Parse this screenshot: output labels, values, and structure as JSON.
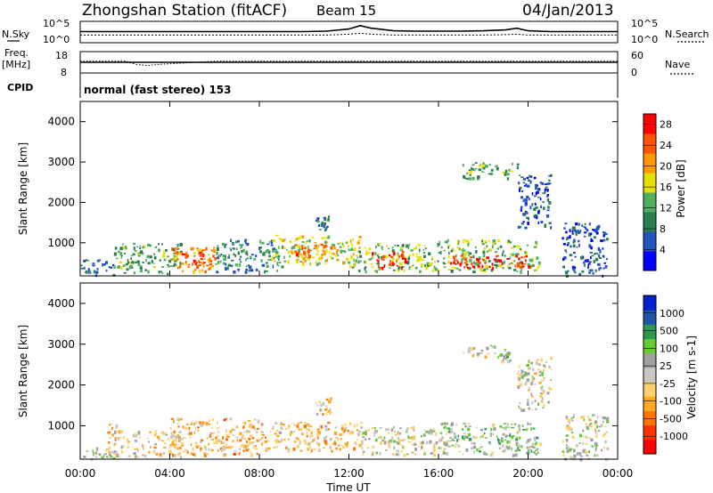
{
  "header": {
    "station": "Zhongshan Station (fitACF)",
    "beam": "Beam 15",
    "date": "04/Jan/2013"
  },
  "sky_panel": {
    "left_label": "N.Sky",
    "left_ticks": [
      "10^5",
      "10^0"
    ],
    "right_label": "N.Search",
    "right_ticks": [
      "10^5",
      "10^0"
    ]
  },
  "freq_panel": {
    "left_label": "Freq.",
    "left_unit": "[MHz]",
    "left_ticks": [
      "18",
      "8"
    ],
    "right_label": "Nave",
    "right_ticks": [
      "60",
      "0"
    ]
  },
  "cpid": {
    "label": "CPID",
    "value": "normal (fast stereo) 153"
  },
  "x_axis": {
    "title": "Time UT",
    "ticks": [
      "00:00",
      "04:00",
      "08:00",
      "12:00",
      "16:00",
      "20:00",
      "00:00"
    ]
  },
  "colors": {
    "power_scale": [
      "#0000ff",
      "#2255bb",
      "#2a7f4f",
      "#4fb060",
      "#e8e000",
      "#ff9900",
      "#ff5500",
      "#ff0000"
    ],
    "velocity_scale": [
      "#ff0000",
      "#ff3300",
      "#ff7700",
      "#ffaa22",
      "#ffd070",
      "#c8c8c0",
      "#a0a0a0",
      "#66cc33",
      "#2a9a50",
      "#2255aa",
      "#0022cc"
    ]
  },
  "chart_data": [
    {
      "type": "line",
      "panel": "N.Sky / N.Search",
      "x_unit": "hours UT",
      "x": [
        0,
        1,
        2,
        3,
        4,
        5,
        6,
        7,
        8,
        9,
        10,
        11,
        12,
        12.5,
        13,
        14,
        15,
        16,
        17,
        18,
        19,
        19.5,
        20,
        21,
        22,
        23,
        24
      ],
      "series": [
        {
          "values": [
            2.6,
            2.6,
            2.6,
            2.6,
            2.6,
            2.6,
            2.6,
            2.6,
            2.6,
            2.6,
            2.6,
            2.7,
            3.2,
            4.0,
            3.4,
            2.8,
            2.7,
            2.7,
            2.7,
            2.8,
            3.0,
            3.4,
            2.8,
            2.6,
            2.6,
            2.6,
            2.6
          ]
        },
        {
          "values": [
            1.8,
            1.8,
            1.8,
            1.8,
            1.8,
            1.8,
            1.8,
            1.8,
            1.8,
            1.8,
            1.8,
            1.8,
            2.0,
            2.2,
            2.0,
            1.8,
            1.8,
            1.8,
            1.8,
            1.8,
            1.9,
            2.0,
            1.8,
            1.8,
            1.8,
            1.8,
            1.8
          ]
        }
      ],
      "ylim": [
        0,
        5
      ]
    },
    {
      "type": "line",
      "panel": "Freq. / Nave",
      "x_unit": "hours UT",
      "x": [
        0,
        2,
        2.5,
        3,
        3.5,
        6,
        12,
        16,
        20,
        24
      ],
      "series": [
        {
          "values": [
            13.5,
            13.5,
            12.0,
            11.5,
            12.0,
            13.5,
            13.5,
            13.5,
            13.5,
            13.5
          ]
        },
        {
          "values": [
            30,
            30,
            30,
            30,
            30,
            30,
            30,
            30,
            30,
            30
          ]
        }
      ],
      "ylim": [
        8,
        18
      ]
    },
    {
      "type": "heatmap",
      "panel": "power",
      "ylabel": "Slant Range [km]",
      "xlabel": "Time UT",
      "xlim": [
        0,
        24
      ],
      "ylim": [
        180,
        4500
      ],
      "yticks": [
        1000,
        2000,
        3000,
        4000
      ],
      "colorbar": {
        "label": "Power [dB]",
        "ticks": [
          4,
          8,
          12,
          16,
          20,
          24,
          28
        ],
        "range": [
          0,
          30
        ]
      },
      "patches": [
        {
          "t0": 0.0,
          "t1": 1.5,
          "r0": 200,
          "r1": 600,
          "value": 8
        },
        {
          "t0": 1.5,
          "t1": 4.5,
          "r0": 250,
          "r1": 1000,
          "value": 12
        },
        {
          "t0": 4.0,
          "t1": 6.0,
          "r0": 300,
          "r1": 900,
          "value": 22
        },
        {
          "t0": 4.5,
          "t1": 5.5,
          "r0": 450,
          "r1": 750,
          "value": 28
        },
        {
          "t0": 6.0,
          "t1": 9.0,
          "r0": 300,
          "r1": 1100,
          "value": 10
        },
        {
          "t0": 8.5,
          "t1": 12.5,
          "r0": 500,
          "r1": 1200,
          "value": 16
        },
        {
          "t0": 9.5,
          "t1": 11.5,
          "r0": 700,
          "r1": 1000,
          "value": 22
        },
        {
          "t0": 10.5,
          "t1": 11.2,
          "r0": 1300,
          "r1": 1700,
          "value": 10
        },
        {
          "t0": 12.0,
          "t1": 16.0,
          "r0": 300,
          "r1": 1000,
          "value": 14
        },
        {
          "t0": 13.0,
          "t1": 14.5,
          "r0": 400,
          "r1": 800,
          "value": 26
        },
        {
          "t0": 16.0,
          "t1": 20.5,
          "r0": 300,
          "r1": 1100,
          "value": 14
        },
        {
          "t0": 16.5,
          "t1": 20.0,
          "r0": 400,
          "r1": 700,
          "value": 28
        },
        {
          "t0": 17.0,
          "t1": 19.5,
          "r0": 2600,
          "r1": 3000,
          "value": 12
        },
        {
          "t0": 19.5,
          "t1": 21.0,
          "r0": 1400,
          "r1": 2700,
          "value": 6
        },
        {
          "t0": 21.5,
          "t1": 23.5,
          "r0": 200,
          "r1": 1500,
          "value": 6
        }
      ]
    },
    {
      "type": "heatmap",
      "panel": "velocity",
      "ylabel": "Slant Range [km]",
      "xlabel": "Time UT",
      "xlim": [
        0,
        24
      ],
      "ylim": [
        180,
        4500
      ],
      "yticks": [
        1000,
        2000,
        3000,
        4000
      ],
      "colorbar": {
        "label": "Velocity [m s-1]",
        "ticks": [
          -1000,
          -500,
          -100,
          -25,
          25,
          100,
          500,
          1000
        ],
        "range": [
          -1000,
          1000
        ]
      },
      "patches": [
        {
          "t0": 0.0,
          "t1": 1.5,
          "r0": 200,
          "r1": 500,
          "value": 80
        },
        {
          "t0": 1.2,
          "t1": 1.6,
          "r0": 300,
          "r1": 1200,
          "value": -200
        },
        {
          "t0": 1.5,
          "t1": 4.5,
          "r0": 250,
          "r1": 900,
          "value": -150
        },
        {
          "t0": 4.0,
          "t1": 8.0,
          "r0": 300,
          "r1": 1200,
          "value": -300
        },
        {
          "t0": 8.0,
          "t1": 12.5,
          "r0": 400,
          "r1": 1100,
          "value": -250
        },
        {
          "t0": 10.5,
          "t1": 11.2,
          "r0": 1300,
          "r1": 1700,
          "value": -200
        },
        {
          "t0": 12.5,
          "t1": 16.5,
          "r0": 300,
          "r1": 1000,
          "value": 60
        },
        {
          "t0": 16.0,
          "t1": 20.5,
          "r0": 300,
          "r1": 1100,
          "value": 200
        },
        {
          "t0": 17.0,
          "t1": 18.5,
          "r0": 2700,
          "r1": 3000,
          "value": 10
        },
        {
          "t0": 18.5,
          "t1": 19.3,
          "r0": 2600,
          "r1": 2900,
          "value": 150
        },
        {
          "t0": 19.5,
          "t1": 21.0,
          "r0": 1400,
          "r1": 2700,
          "value": 5
        },
        {
          "t0": 21.5,
          "t1": 23.5,
          "r0": 200,
          "r1": 1300,
          "value": 60
        }
      ]
    }
  ]
}
